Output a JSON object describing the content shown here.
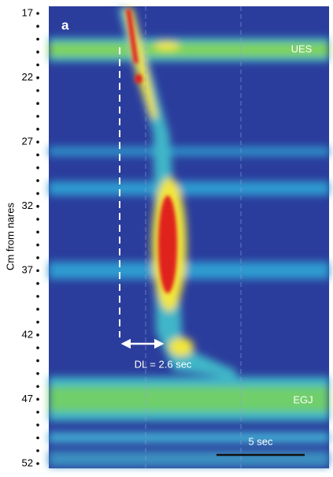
{
  "chart_data": {
    "type": "image",
    "ylabel": "Cm from nares",
    "ylim": [
      17,
      52
    ],
    "yticks": [
      17,
      22,
      27,
      32,
      37,
      42,
      47,
      52
    ],
    "panel_label": "a",
    "annotations": [
      "UES",
      "DL = 2.6 sec",
      "EGJ",
      "5 sec"
    ]
  }
}
